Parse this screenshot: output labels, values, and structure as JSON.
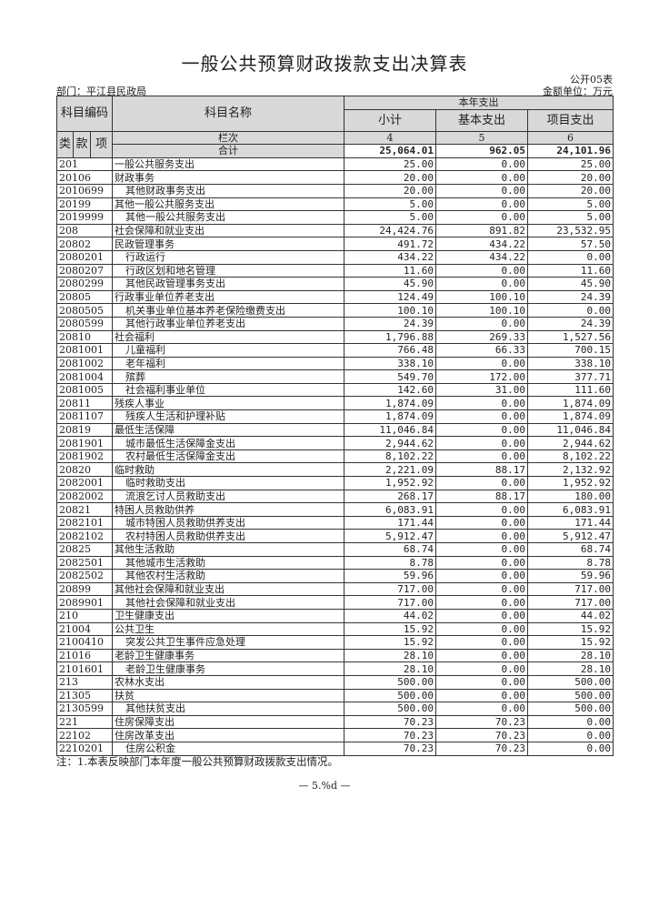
{
  "title": "一般公共预算财政拨款支出决算表",
  "form_no": "公开05表",
  "department": "部门：平江县民政局",
  "unit": "金额单位：万元",
  "headers": {
    "code": "科目编码",
    "name": "科目名称",
    "current_year": "本年支出",
    "subtotal": "小计",
    "basic": "基本支出",
    "project": "项目支出",
    "lei": "类",
    "kuan": "款",
    "xiang": "项",
    "column_index": "栏次",
    "col4": "4",
    "col5": "5",
    "col6": "6",
    "total_label": "合计"
  },
  "total": {
    "subtotal": "25,064.01",
    "basic": "962.05",
    "project": "24,101.96"
  },
  "rows": [
    {
      "code": "201",
      "name": "一般公共服务支出",
      "level": 1,
      "subtotal": "25.00",
      "basic": "0.00",
      "project": "25.00"
    },
    {
      "code": "20106",
      "name": "财政事务",
      "level": 1,
      "subtotal": "20.00",
      "basic": "0.00",
      "project": "20.00"
    },
    {
      "code": "2010699",
      "name": "其他财政事务支出",
      "level": 2,
      "subtotal": "20.00",
      "basic": "0.00",
      "project": "20.00"
    },
    {
      "code": "20199",
      "name": "其他一般公共服务支出",
      "level": 1,
      "subtotal": "5.00",
      "basic": "0.00",
      "project": "5.00"
    },
    {
      "code": "2019999",
      "name": "其他一般公共服务支出",
      "level": 2,
      "subtotal": "5.00",
      "basic": "0.00",
      "project": "5.00"
    },
    {
      "code": "208",
      "name": "社会保障和就业支出",
      "level": 1,
      "subtotal": "24,424.76",
      "basic": "891.82",
      "project": "23,532.95"
    },
    {
      "code": "20802",
      "name": "民政管理事务",
      "level": 1,
      "subtotal": "491.72",
      "basic": "434.22",
      "project": "57.50"
    },
    {
      "code": "2080201",
      "name": "行政运行",
      "level": 2,
      "subtotal": "434.22",
      "basic": "434.22",
      "project": "0.00"
    },
    {
      "code": "2080207",
      "name": "行政区划和地名管理",
      "level": 2,
      "subtotal": "11.60",
      "basic": "0.00",
      "project": "11.60"
    },
    {
      "code": "2080299",
      "name": "其他民政管理事务支出",
      "level": 2,
      "subtotal": "45.90",
      "basic": "0.00",
      "project": "45.90"
    },
    {
      "code": "20805",
      "name": "行政事业单位养老支出",
      "level": 1,
      "subtotal": "124.49",
      "basic": "100.10",
      "project": "24.39"
    },
    {
      "code": "2080505",
      "name": "机关事业单位基本养老保险缴费支出",
      "level": 2,
      "subtotal": "100.10",
      "basic": "100.10",
      "project": "0.00"
    },
    {
      "code": "2080599",
      "name": "其他行政事业单位养老支出",
      "level": 2,
      "subtotal": "24.39",
      "basic": "0.00",
      "project": "24.39"
    },
    {
      "code": "20810",
      "name": "社会福利",
      "level": 1,
      "subtotal": "1,796.88",
      "basic": "269.33",
      "project": "1,527.56"
    },
    {
      "code": "2081001",
      "name": "儿童福利",
      "level": 2,
      "subtotal": "766.48",
      "basic": "66.33",
      "project": "700.15"
    },
    {
      "code": "2081002",
      "name": "老年福利",
      "level": 2,
      "subtotal": "338.10",
      "basic": "0.00",
      "project": "338.10"
    },
    {
      "code": "2081004",
      "name": "殡葬",
      "level": 2,
      "subtotal": "549.70",
      "basic": "172.00",
      "project": "377.71"
    },
    {
      "code": "2081005",
      "name": "社会福利事业单位",
      "level": 2,
      "subtotal": "142.60",
      "basic": "31.00",
      "project": "111.60"
    },
    {
      "code": "20811",
      "name": "残疾人事业",
      "level": 1,
      "subtotal": "1,874.09",
      "basic": "0.00",
      "project": "1,874.09"
    },
    {
      "code": "2081107",
      "name": "残疾人生活和护理补贴",
      "level": 2,
      "subtotal": "1,874.09",
      "basic": "0.00",
      "project": "1,874.09"
    },
    {
      "code": "20819",
      "name": "最低生活保障",
      "level": 1,
      "subtotal": "11,046.84",
      "basic": "0.00",
      "project": "11,046.84"
    },
    {
      "code": "2081901",
      "name": "城市最低生活保障金支出",
      "level": 2,
      "subtotal": "2,944.62",
      "basic": "0.00",
      "project": "2,944.62"
    },
    {
      "code": "2081902",
      "name": "农村最低生活保障金支出",
      "level": 2,
      "subtotal": "8,102.22",
      "basic": "0.00",
      "project": "8,102.22"
    },
    {
      "code": "20820",
      "name": "临时救助",
      "level": 1,
      "subtotal": "2,221.09",
      "basic": "88.17",
      "project": "2,132.92"
    },
    {
      "code": "2082001",
      "name": "临时救助支出",
      "level": 2,
      "subtotal": "1,952.92",
      "basic": "0.00",
      "project": "1,952.92"
    },
    {
      "code": "2082002",
      "name": "流浪乞讨人员救助支出",
      "level": 2,
      "subtotal": "268.17",
      "basic": "88.17",
      "project": "180.00"
    },
    {
      "code": "20821",
      "name": "特困人员救助供养",
      "level": 1,
      "subtotal": "6,083.91",
      "basic": "0.00",
      "project": "6,083.91"
    },
    {
      "code": "2082101",
      "name": "城市特困人员救助供养支出",
      "level": 2,
      "subtotal": "171.44",
      "basic": "0.00",
      "project": "171.44"
    },
    {
      "code": "2082102",
      "name": "农村特困人员救助供养支出",
      "level": 2,
      "subtotal": "5,912.47",
      "basic": "0.00",
      "project": "5,912.47"
    },
    {
      "code": "20825",
      "name": "其他生活救助",
      "level": 1,
      "subtotal": "68.74",
      "basic": "0.00",
      "project": "68.74"
    },
    {
      "code": "2082501",
      "name": "其他城市生活救助",
      "level": 2,
      "subtotal": "8.78",
      "basic": "0.00",
      "project": "8.78"
    },
    {
      "code": "2082502",
      "name": "其他农村生活救助",
      "level": 2,
      "subtotal": "59.96",
      "basic": "0.00",
      "project": "59.96"
    },
    {
      "code": "20899",
      "name": "其他社会保障和就业支出",
      "level": 1,
      "subtotal": "717.00",
      "basic": "0.00",
      "project": "717.00"
    },
    {
      "code": "2089901",
      "name": "其他社会保障和就业支出",
      "level": 2,
      "subtotal": "717.00",
      "basic": "0.00",
      "project": "717.00"
    },
    {
      "code": "210",
      "name": "卫生健康支出",
      "level": 1,
      "subtotal": "44.02",
      "basic": "0.00",
      "project": "44.02"
    },
    {
      "code": "21004",
      "name": "公共卫生",
      "level": 1,
      "subtotal": "15.92",
      "basic": "0.00",
      "project": "15.92"
    },
    {
      "code": "2100410",
      "name": "突发公共卫生事件应急处理",
      "level": 2,
      "subtotal": "15.92",
      "basic": "0.00",
      "project": "15.92"
    },
    {
      "code": "21016",
      "name": "老龄卫生健康事务",
      "level": 1,
      "subtotal": "28.10",
      "basic": "0.00",
      "project": "28.10"
    },
    {
      "code": "2101601",
      "name": "老龄卫生健康事务",
      "level": 2,
      "subtotal": "28.10",
      "basic": "0.00",
      "project": "28.10"
    },
    {
      "code": "213",
      "name": "农林水支出",
      "level": 1,
      "subtotal": "500.00",
      "basic": "0.00",
      "project": "500.00"
    },
    {
      "code": "21305",
      "name": "扶贫",
      "level": 1,
      "subtotal": "500.00",
      "basic": "0.00",
      "project": "500.00"
    },
    {
      "code": "2130599",
      "name": "其他扶贫支出",
      "level": 2,
      "subtotal": "500.00",
      "basic": "0.00",
      "project": "500.00"
    },
    {
      "code": "221",
      "name": "住房保障支出",
      "level": 1,
      "subtotal": "70.23",
      "basic": "70.23",
      "project": "0.00"
    },
    {
      "code": "22102",
      "name": "住房改革支出",
      "level": 1,
      "subtotal": "70.23",
      "basic": "70.23",
      "project": "0.00"
    },
    {
      "code": "2210201",
      "name": "住房公积金",
      "level": 2,
      "subtotal": "70.23",
      "basic": "70.23",
      "project": "0.00"
    }
  ],
  "note": "注：1.本表反映部门本年度一般公共预算财政拨款支出情况。",
  "page_number": "— 5.%d —"
}
